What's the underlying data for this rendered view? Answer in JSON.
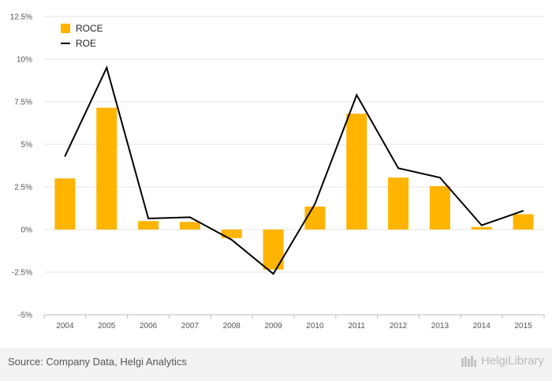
{
  "chart_data": {
    "type": "bar",
    "categories": [
      "2004",
      "2005",
      "2006",
      "2007",
      "2008",
      "2009",
      "2010",
      "2011",
      "2012",
      "2013",
      "2014",
      "2015"
    ],
    "series": [
      {
        "name": "ROCE",
        "type": "bar",
        "color": "#FFB400",
        "values": [
          3.0,
          7.15,
          0.5,
          0.45,
          -0.5,
          -2.35,
          1.35,
          6.8,
          3.05,
          2.55,
          0.15,
          0.9
        ]
      },
      {
        "name": "ROE",
        "type": "line",
        "color": "#000000",
        "values": [
          4.3,
          9.5,
          0.65,
          0.72,
          -0.6,
          -2.6,
          1.5,
          7.9,
          3.6,
          3.05,
          0.25,
          1.1
        ]
      }
    ],
    "ylim": [
      -5,
      12.5
    ],
    "yticks": [
      -5,
      -2.5,
      0,
      2.5,
      5,
      7.5,
      10,
      12.5
    ],
    "ytick_labels": [
      "-5%",
      "-2.5%",
      "0%",
      "2.5%",
      "5%",
      "7.5%",
      "10%",
      "12.5%"
    ],
    "grid": true,
    "legend_position": "top-left"
  },
  "footer": {
    "source": "Source: Company Data, Helgi Analytics",
    "brand": "HelgiLibrary"
  }
}
